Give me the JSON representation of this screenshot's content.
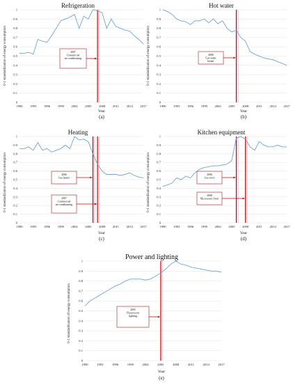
{
  "figure": {
    "panels": [
      {
        "title": "Refrigeration",
        "label": "(a)",
        "xlabel": "Year",
        "ylabel": "0-1 standardization of energy consumption"
      },
      {
        "title": "Hot water",
        "label": "(b)",
        "xlabel": "Year",
        "ylabel": "0-1 standardization of energy consumption"
      },
      {
        "title": "Heating",
        "label": "(c)",
        "xlabel": "Year",
        "ylabel": "0-1 standardization of energy consumption"
      },
      {
        "title": "Kitchen equipment",
        "label": "(d)",
        "xlabel": "Year",
        "ylabel": "0-1 standardization of energy consumption"
      },
      {
        "title": "Power and lighting",
        "label": "(e)",
        "xlabel": "Year",
        "ylabel": "0-1 standardization of energy consumption"
      }
    ]
  },
  "colors": {
    "series": "#5b9bd5",
    "event_line": "#c00000",
    "event_band": "#f4b7c8",
    "annotation_border": "#c0504d"
  },
  "chart_data": [
    {
      "type": "line",
      "title": "Refrigeration",
      "xlabel": "Year",
      "ylabel": "0-1 standardization of energy consumption",
      "x": [
        1990,
        1991,
        1992,
        1993,
        1994,
        1995,
        1996,
        1997,
        1998,
        1999,
        2000,
        2001,
        2002,
        2003,
        2004,
        2005,
        2006,
        2007,
        2008,
        2009,
        2010,
        2011,
        2012,
        2013,
        2014,
        2015,
        2016,
        2017
      ],
      "values": [
        0.53,
        0.53,
        0.54,
        0.52,
        0.68,
        0.66,
        0.65,
        0.72,
        0.8,
        0.88,
        0.9,
        0.92,
        0.95,
        0.8,
        0.93,
        0.9,
        1.0,
        0.99,
        0.97,
        0.8,
        0.9,
        0.82,
        0.8,
        0.78,
        0.77,
        0.72,
        0.68,
        0.63
      ],
      "xticks": [
        1990,
        1993,
        1996,
        1999,
        2002,
        2005,
        2008,
        2011,
        2014,
        2017
      ],
      "yticks": [
        0,
        0.1,
        0.2,
        0.3,
        0.4,
        0.5,
        0.6,
        0.7,
        0.8,
        0.9,
        1
      ],
      "ylim": [
        0,
        1
      ],
      "xlim": [
        1990,
        2017
      ],
      "events": [
        {
          "year": 2007,
          "text_year": "2007",
          "text": "Commercial air-conditioning"
        }
      ]
    },
    {
      "type": "line",
      "title": "Hot water",
      "xlabel": "Year",
      "ylabel": "0-1 standardization of energy consumption",
      "x": [
        1990,
        1991,
        1992,
        1993,
        1994,
        1995,
        1996,
        1997,
        1998,
        1999,
        2000,
        2001,
        2002,
        2003,
        2004,
        2005,
        2006,
        2007,
        2008,
        2009,
        2010,
        2011,
        2012,
        2013,
        2014,
        2015,
        2016,
        2017
      ],
      "values": [
        1.0,
        0.98,
        0.95,
        0.9,
        0.88,
        0.87,
        0.84,
        0.88,
        0.88,
        0.9,
        0.86,
        0.9,
        0.85,
        0.88,
        0.8,
        0.76,
        0.78,
        0.7,
        0.66,
        0.55,
        0.52,
        0.5,
        0.48,
        0.47,
        0.46,
        0.44,
        0.42,
        0.4
      ],
      "xticks": [
        1990,
        1993,
        1996,
        1999,
        2002,
        2005,
        2008,
        2011,
        2014,
        2017
      ],
      "yticks": [
        0,
        0.1,
        0.2,
        0.3,
        0.4,
        0.5,
        0.6,
        0.7,
        0.8,
        0.9,
        1
      ],
      "ylim": [
        0,
        1
      ],
      "xlim": [
        1990,
        2017
      ],
      "events": [
        {
          "year": 2006,
          "text_year": "2006",
          "text": "Gas water heater"
        }
      ]
    },
    {
      "type": "line",
      "title": "Heating",
      "xlabel": "Year",
      "ylabel": "0-1 standardization of energy consumption",
      "x": [
        1990,
        1991,
        1992,
        1993,
        1994,
        1995,
        1996,
        1997,
        1998,
        1999,
        2000,
        2001,
        2002,
        2003,
        2004,
        2005,
        2006,
        2007,
        2008,
        2009,
        2010,
        2011,
        2012,
        2013,
        2014,
        2015,
        2016,
        2017
      ],
      "values": [
        0.86,
        0.86,
        0.88,
        0.84,
        0.93,
        0.84,
        0.86,
        0.82,
        0.84,
        0.86,
        0.9,
        0.86,
        1.0,
        0.96,
        0.97,
        0.94,
        0.8,
        0.68,
        0.6,
        0.56,
        0.56,
        0.56,
        0.55,
        0.56,
        0.58,
        0.55,
        0.53,
        0.52
      ],
      "xticks": [
        1990,
        1993,
        1996,
        1999,
        2002,
        2005,
        2008,
        2011,
        2014,
        2017
      ],
      "yticks": [
        0,
        0.1,
        0.2,
        0.3,
        0.4,
        0.5,
        0.6,
        0.7,
        0.8,
        0.9,
        1
      ],
      "ylim": [
        0,
        1
      ],
      "xlim": [
        1990,
        2017
      ],
      "events": [
        {
          "year": 2006,
          "text_year": "2006",
          "text": "Gas heater"
        },
        {
          "year": 2007,
          "text_year": "2007",
          "text": "Commercial air-conditioning"
        }
      ]
    },
    {
      "type": "line",
      "title": "Kitchen equipment",
      "xlabel": "Year",
      "ylabel": "0-1 standardization of energy consumption",
      "x": [
        1990,
        1991,
        1992,
        1993,
        1994,
        1995,
        1996,
        1997,
        1998,
        1999,
        2000,
        2001,
        2002,
        2003,
        2004,
        2005,
        2006,
        2007,
        2008,
        2009,
        2010,
        2011,
        2012,
        2013,
        2014,
        2015,
        2016,
        2017
      ],
      "values": [
        0.42,
        0.44,
        0.46,
        0.52,
        0.5,
        0.54,
        0.52,
        0.58,
        0.62,
        0.64,
        0.65,
        0.66,
        0.66,
        0.67,
        0.68,
        0.72,
        0.98,
        1.0,
        0.97,
        0.88,
        0.84,
        0.94,
        0.9,
        0.88,
        0.88,
        0.9,
        0.88,
        0.88
      ],
      "xticks": [
        1990,
        1993,
        1996,
        1999,
        2002,
        2005,
        2008,
        2011,
        2014,
        2017
      ],
      "yticks": [
        0,
        0.1,
        0.2,
        0.3,
        0.4,
        0.5,
        0.6,
        0.7,
        0.8,
        0.9,
        1
      ],
      "ylim": [
        0,
        1
      ],
      "xlim": [
        1990,
        2017
      ],
      "events": [
        {
          "year": 2006,
          "text_year": "2006",
          "text": "Gas stove"
        },
        {
          "year": 2008,
          "text_year": "2008",
          "text": "Microwave Oven"
        }
      ]
    },
    {
      "type": "line",
      "title": "Power and lighting",
      "xlabel": "Year",
      "ylabel": "0-1 standardization of energy consumption",
      "x": [
        1990,
        1991,
        1992,
        1993,
        1994,
        1995,
        1996,
        1997,
        1998,
        1999,
        2000,
        2001,
        2002,
        2003,
        2004,
        2005,
        2006,
        2007,
        2008,
        2009,
        2010,
        2011,
        2012,
        2013,
        2014,
        2015,
        2016,
        2017
      ],
      "values": [
        0.55,
        0.6,
        0.63,
        0.66,
        0.69,
        0.72,
        0.75,
        0.77,
        0.8,
        0.82,
        0.82,
        0.82,
        0.81,
        0.82,
        0.85,
        0.88,
        0.92,
        0.97,
        1.0,
        0.97,
        0.96,
        0.94,
        0.93,
        0.92,
        0.91,
        0.9,
        0.9,
        0.89
      ],
      "xticks": [
        1990,
        1993,
        1996,
        1999,
        2002,
        2005,
        2008,
        2011,
        2014,
        2017
      ],
      "yticks": [
        0,
        0.1,
        0.2,
        0.3,
        0.4,
        0.5,
        0.6,
        0.7,
        0.8,
        0.9,
        1
      ],
      "ylim": [
        0,
        1
      ],
      "xlim": [
        1990,
        2017
      ],
      "events": [
        {
          "year": 2005,
          "text_year": "2005",
          "text": "Fluorescent lighting"
        }
      ]
    }
  ]
}
